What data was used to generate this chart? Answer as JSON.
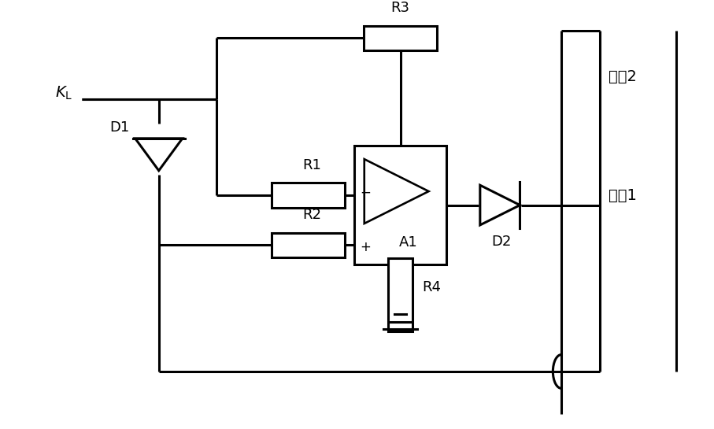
{
  "bg_color": "#ffffff",
  "lc": "#000000",
  "lw": 2.2,
  "fig_w": 9.07,
  "fig_h": 5.45,
  "dpi": 100,
  "labels": {
    "KL": "$K_{\\mathrm{L}}$",
    "D1": "D1",
    "D2": "D2",
    "R1": "R1",
    "R2": "R2",
    "R3": "R3",
    "R4": "R4",
    "A1": "A1",
    "bus1": "母线1",
    "bus2": "母线2"
  },
  "fs": 13,
  "fs_bus": 14,
  "fs_kl": 14
}
